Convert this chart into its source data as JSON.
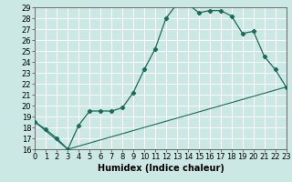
{
  "title": "",
  "xlabel": "Humidex (Indice chaleur)",
  "bg_color": "#cce8e4",
  "line_color": "#1a6b5a",
  "grid_color": "#ffffff",
  "x_min": 0,
  "x_max": 23,
  "y_min": 16,
  "y_max": 29,
  "line1_x": [
    0,
    1,
    2,
    3,
    4,
    5,
    6,
    7,
    8,
    9,
    10,
    11,
    12,
    13,
    14,
    15,
    16,
    17,
    18,
    19,
    20,
    21,
    22,
    23
  ],
  "line1_y": [
    18.5,
    17.8,
    17.0,
    16.0,
    18.2,
    19.5,
    19.5,
    19.5,
    19.8,
    21.2,
    23.3,
    25.2,
    28.0,
    29.3,
    29.3,
    28.5,
    28.7,
    28.7,
    28.2,
    26.6,
    26.8,
    24.5,
    23.3,
    21.7
  ],
  "line2_x": [
    0,
    3,
    23
  ],
  "line2_y": [
    18.5,
    16.0,
    21.7
  ],
  "xtick_labels": [
    "0",
    "1",
    "2",
    "3",
    "4",
    "5",
    "6",
    "7",
    "8",
    "9",
    "10",
    "11",
    "12",
    "13",
    "14",
    "15",
    "16",
    "17",
    "18",
    "19",
    "20",
    "21",
    "22",
    "23"
  ],
  "ytick_labels": [
    "16",
    "17",
    "18",
    "19",
    "20",
    "21",
    "22",
    "23",
    "24",
    "25",
    "26",
    "27",
    "28",
    "29"
  ],
  "fontsize_ticks": 6,
  "fontsize_xlabel": 7
}
